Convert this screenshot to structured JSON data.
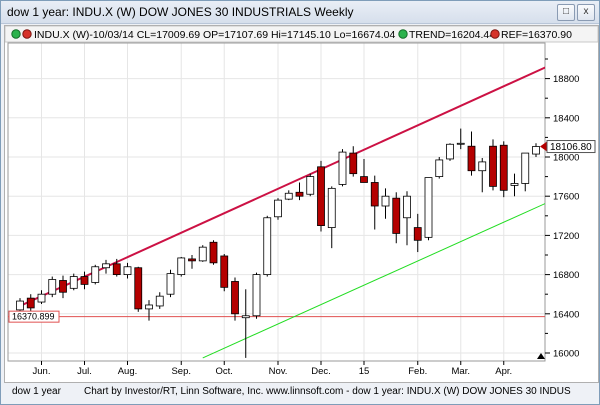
{
  "window": {
    "title": "dow 1 year: INDU.X (W) DOW JONES 30 INDUSTRIALS Weekly",
    "restore_glyph": "□",
    "close_glyph": "x"
  },
  "legend": {
    "quote": "INDU.X (W)-10/03/14 CL=17009.69 OP=17107.69 Hi=17145.10 Lo=16674.04",
    "trend": "TREND=16204.44",
    "ref": "REF=16370.90"
  },
  "footer": {
    "left": "dow 1 year",
    "right": "Chart by Investor/RT, Linn Software, Inc. www.linnsoft.com - dow 1 year: INDU.X (W) DOW JONES 30 INDUS"
  },
  "colors": {
    "up_candle": "#ffffff",
    "down_candle": "#b40000",
    "upper_channel": "#cc1144",
    "lower_channel": "#22dd22",
    "ref_line": "#e05050",
    "price_tag": "#ffffff"
  },
  "chart_data": {
    "type": "candlestick",
    "title": "INDU.X (W) DOW JONES 30 INDUSTRIALS Weekly",
    "y_axis": {
      "min": 15950,
      "max": 19200,
      "ticks": [
        16000,
        16400,
        16800,
        17200,
        17600,
        18000,
        18400,
        18800
      ],
      "position": "right"
    },
    "x_ticks": [
      {
        "label": "Jun.",
        "index": 2
      },
      {
        "label": "Jul.",
        "index": 6
      },
      {
        "label": "Aug.",
        "index": 10
      },
      {
        "label": "Sep.",
        "index": 15
      },
      {
        "label": "Oct.",
        "index": 19
      },
      {
        "label": "Nov.",
        "index": 24
      },
      {
        "label": "Dec.",
        "index": 28
      },
      {
        "label": "15",
        "index": 32
      },
      {
        "label": "Feb.",
        "index": 37
      },
      {
        "label": "Mar.",
        "index": 41
      },
      {
        "label": "Apr.",
        "index": 45
      }
    ],
    "candles": [
      {
        "o": 16440,
        "h": 16560,
        "l": 16400,
        "c": 16530
      },
      {
        "o": 16560,
        "h": 16600,
        "l": 16420,
        "c": 16460
      },
      {
        "o": 16520,
        "h": 16640,
        "l": 16500,
        "c": 16600
      },
      {
        "o": 16600,
        "h": 16780,
        "l": 16570,
        "c": 16750
      },
      {
        "o": 16740,
        "h": 16790,
        "l": 16560,
        "c": 16620
      },
      {
        "o": 16660,
        "h": 16810,
        "l": 16640,
        "c": 16780
      },
      {
        "o": 16780,
        "h": 16830,
        "l": 16650,
        "c": 16700
      },
      {
        "o": 16720,
        "h": 16900,
        "l": 16700,
        "c": 16880
      },
      {
        "o": 16870,
        "h": 16950,
        "l": 16810,
        "c": 16910
      },
      {
        "o": 16910,
        "h": 16960,
        "l": 16780,
        "c": 16800
      },
      {
        "o": 16800,
        "h": 16920,
        "l": 16760,
        "c": 16880
      },
      {
        "o": 16870,
        "h": 16880,
        "l": 16420,
        "c": 16450
      },
      {
        "o": 16450,
        "h": 16540,
        "l": 16330,
        "c": 16490
      },
      {
        "o": 16480,
        "h": 16620,
        "l": 16450,
        "c": 16580
      },
      {
        "o": 16600,
        "h": 16850,
        "l": 16570,
        "c": 16810
      },
      {
        "o": 16800,
        "h": 16980,
        "l": 16780,
        "c": 16970
      },
      {
        "o": 16960,
        "h": 17000,
        "l": 16860,
        "c": 16940
      },
      {
        "o": 16940,
        "h": 17100,
        "l": 16930,
        "c": 17080
      },
      {
        "o": 17130,
        "h": 17150,
        "l": 16900,
        "c": 16920
      },
      {
        "o": 16990,
        "h": 17010,
        "l": 16630,
        "c": 16670
      },
      {
        "o": 16730,
        "h": 16770,
        "l": 16330,
        "c": 16400
      },
      {
        "o": 16360,
        "h": 16650,
        "l": 15950,
        "c": 16380
      },
      {
        "o": 16380,
        "h": 16820,
        "l": 16350,
        "c": 16800
      },
      {
        "o": 16800,
        "h": 17400,
        "l": 16780,
        "c": 17380
      },
      {
        "o": 17390,
        "h": 17580,
        "l": 17360,
        "c": 17560
      },
      {
        "o": 17570,
        "h": 17660,
        "l": 17560,
        "c": 17630
      },
      {
        "o": 17640,
        "h": 17740,
        "l": 17560,
        "c": 17600
      },
      {
        "o": 17620,
        "h": 17830,
        "l": 17600,
        "c": 17800
      },
      {
        "o": 17900,
        "h": 17960,
        "l": 17240,
        "c": 17300
      },
      {
        "o": 17280,
        "h": 17700,
        "l": 17070,
        "c": 17680
      },
      {
        "o": 17720,
        "h": 18080,
        "l": 17700,
        "c": 18050
      },
      {
        "o": 18040,
        "h": 18110,
        "l": 17800,
        "c": 17830
      },
      {
        "o": 17800,
        "h": 17980,
        "l": 17740,
        "c": 17740
      },
      {
        "o": 17740,
        "h": 17810,
        "l": 17260,
        "c": 17500
      },
      {
        "o": 17500,
        "h": 17680,
        "l": 17370,
        "c": 17600
      },
      {
        "o": 17580,
        "h": 17640,
        "l": 17120,
        "c": 17220
      },
      {
        "o": 17380,
        "h": 17650,
        "l": 17100,
        "c": 17600
      },
      {
        "o": 17280,
        "h": 17420,
        "l": 17030,
        "c": 17150
      },
      {
        "o": 17180,
        "h": 17790,
        "l": 17150,
        "c": 17790
      },
      {
        "o": 17800,
        "h": 18000,
        "l": 17780,
        "c": 17970
      },
      {
        "o": 17980,
        "h": 18140,
        "l": 17960,
        "c": 18130
      },
      {
        "o": 18130,
        "h": 18290,
        "l": 18080,
        "c": 18140
      },
      {
        "o": 18110,
        "h": 18260,
        "l": 17810,
        "c": 17860
      },
      {
        "o": 17860,
        "h": 17990,
        "l": 17640,
        "c": 17950
      },
      {
        "o": 18110,
        "h": 18180,
        "l": 17660,
        "c": 17700
      },
      {
        "o": 18120,
        "h": 18160,
        "l": 17590,
        "c": 17660
      },
      {
        "o": 17710,
        "h": 17830,
        "l": 17600,
        "c": 17730
      },
      {
        "o": 17730,
        "h": 18040,
        "l": 17650,
        "c": 18040
      },
      {
        "o": 18030,
        "h": 18140,
        "l": 18000,
        "c": 18107
      }
    ],
    "channel_upper": [
      {
        "index": 0,
        "price": 16480
      },
      {
        "index": 53,
        "price": 19120
      }
    ],
    "channel_lower": [
      {
        "index": 17,
        "price": 15950
      },
      {
        "index": 53,
        "price": 17730
      }
    ],
    "ref_line": {
      "value": 16370.9,
      "label": "16370.899"
    },
    "last_price": {
      "value": 18106.8,
      "label": "18106.80"
    }
  }
}
